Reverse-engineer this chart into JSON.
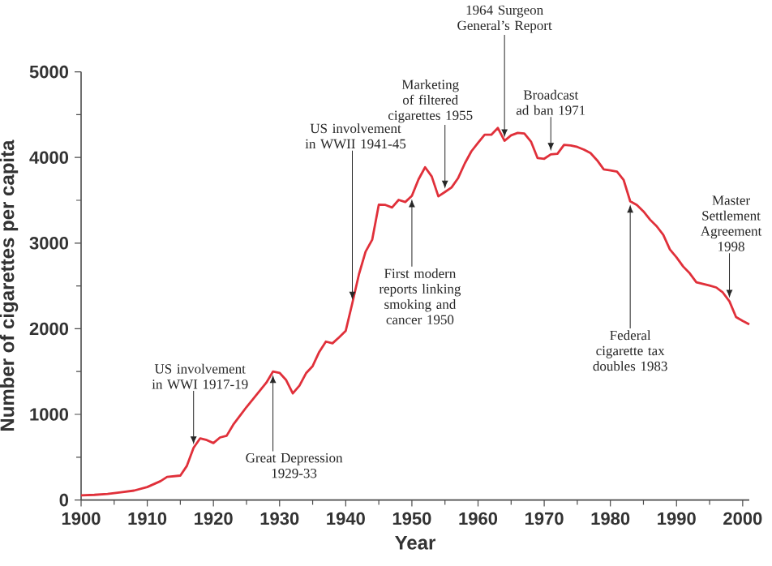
{
  "chart_data": {
    "type": "line",
    "xlabel": "Year",
    "ylabel": "Number of cigarettes per capita",
    "x": [
      1900,
      1902,
      1904,
      1906,
      1908,
      1910,
      1912,
      1913,
      1915,
      1916,
      1917,
      1918,
      1919,
      1920,
      1921,
      1922,
      1923,
      1925,
      1928,
      1929,
      1930,
      1931,
      1932,
      1933,
      1934,
      1935,
      1936,
      1937,
      1938,
      1939,
      1940,
      1941,
      1942,
      1943,
      1944,
      1945,
      1946,
      1947,
      1948,
      1949,
      1950,
      1951,
      1952,
      1953,
      1954,
      1955,
      1956,
      1957,
      1958,
      1959,
      1960,
      1961,
      1962,
      1963,
      1964,
      1965,
      1966,
      1967,
      1968,
      1969,
      1970,
      1971,
      1972,
      1973,
      1974,
      1975,
      1976,
      1977,
      1978,
      1979,
      1980,
      1981,
      1982,
      1983,
      1984,
      1985,
      1986,
      1987,
      1988,
      1989,
      1990,
      1991,
      1992,
      1993,
      1994,
      1995,
      1996,
      1997,
      1998,
      1999,
      2000,
      2001
    ],
    "series": [
      {
        "color": "#e0303a",
        "values": [
          54,
          60,
          70,
          90,
          110,
          151,
          220,
          270,
          285,
          400,
          610,
          720,
          700,
          665,
          730,
          750,
          880,
          1085,
          1370,
          1500,
          1485,
          1400,
          1245,
          1335,
          1480,
          1564,
          1730,
          1850,
          1830,
          1900,
          1976,
          2300,
          2636,
          2900,
          3039,
          3449,
          3446,
          3416,
          3505,
          3480,
          3552,
          3744,
          3886,
          3778,
          3546,
          3597,
          3650,
          3761,
          3931,
          4073,
          4171,
          4266,
          4265,
          4345,
          4195,
          4259,
          4287,
          4280,
          4186,
          3993,
          3985,
          4037,
          4043,
          4148,
          4141,
          4123,
          4092,
          4051,
          3967,
          3861,
          3849,
          3836,
          3739,
          3488,
          3446,
          3370,
          3274,
          3197,
          3096,
          2926,
          2834,
          2727,
          2647,
          2543,
          2524,
          2505,
          2482,
          2423,
          2320,
          2136,
          2092,
          2051
        ]
      }
    ],
    "xlim": [
      1900,
      2001
    ],
    "ylim": [
      0,
      5000
    ],
    "xticks": [
      1900,
      1910,
      1920,
      1930,
      1940,
      1950,
      1960,
      1970,
      1980,
      1990,
      2000
    ],
    "yticks": [
      0,
      1000,
      2000,
      3000,
      4000,
      5000
    ],
    "line_style": "solid",
    "annotations": [
      {
        "text": "US involvement in WWI 1917-19",
        "x": 1917,
        "y": 610
      },
      {
        "text": "Great Depression 1929-33",
        "x": 1929,
        "y": 1500
      },
      {
        "text": "US involvement in WWII 1941-45",
        "x": 1941,
        "y": 2300
      },
      {
        "text": "First modern reports linking smoking and cancer 1950",
        "x": 1950,
        "y": 3552
      },
      {
        "text": "Marketing of filtered cigarettes 1955",
        "x": 1955,
        "y": 3597
      },
      {
        "text": "1964 Surgeon General’s Report",
        "x": 1964,
        "y": 4195
      },
      {
        "text": "Broadcast ad ban 1971",
        "x": 1971,
        "y": 4037
      },
      {
        "text": "Federal cigarette tax doubles 1983",
        "x": 1983,
        "y": 3488
      },
      {
        "text": "Master Settlement Agreement 1998",
        "x": 1998,
        "y": 2320
      }
    ]
  }
}
